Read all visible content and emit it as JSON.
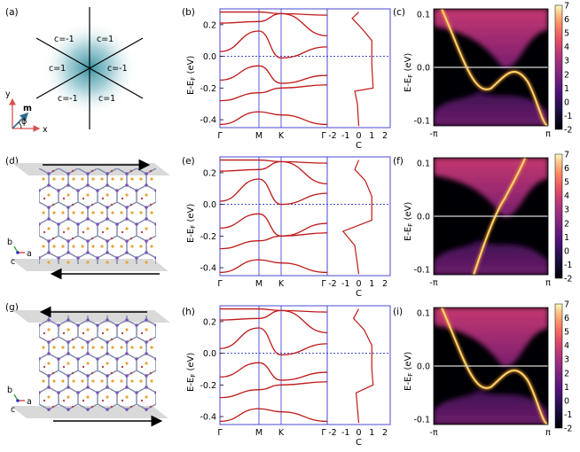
{
  "panel_labels": [
    "(a)",
    "(b)",
    "(c)",
    "(d)",
    "(e)",
    "(f)",
    "(g)",
    "(h)",
    "(i)"
  ],
  "panel_a": {
    "chern_labels": [
      "c=-1",
      "c=1",
      "c=1",
      "c=-1",
      "c=-1",
      "c=1"
    ],
    "axis_x": "x",
    "axis_y": "y",
    "vector_label": "m",
    "angle_label": "ϕ"
  },
  "band_panels": {
    "ylabel": "E-E",
    "ylabel_sub": "F",
    "ylabel_unit": " (eV)",
    "ytick_labels": [
      "0.2",
      "0.0",
      "-0.2",
      "-0.4"
    ],
    "kpath_labels": [
      "Γ",
      "M",
      "K",
      "Γ"
    ],
    "chern_xtick_labels": [
      "-2",
      "-1",
      "0",
      "1",
      "2"
    ],
    "chern_xlabel": "C"
  },
  "spectral_panels": {
    "ylabel": "E-E",
    "ylabel_sub": "F",
    "ylabel_unit": " (eV)",
    "ytick_labels": [
      "0.1",
      "0.0",
      "-0.1"
    ],
    "xtick_labels": [
      "-π",
      "π"
    ],
    "colorbar_ticks": [
      "7",
      "6",
      "5",
      "4",
      "3",
      "2",
      "1",
      "0",
      "-1",
      "-2"
    ]
  },
  "structure_panels": {
    "axis_b": "b",
    "axis_c": "c",
    "axis_a": "a"
  },
  "chart_data": [
    {
      "type": "line",
      "panel": "(b)",
      "xlabel": "",
      "ylabel": "E-E_F (eV)",
      "x": [
        "Γ",
        "M",
        "K",
        "Γ"
      ],
      "ylim": [
        -0.45,
        0.3
      ],
      "series_note": "band energies (eV) sampled at Γ, M, K, Γ",
      "bands": [
        [
          0.28,
          0.28,
          0.27,
          0.26
        ],
        [
          0.21,
          0.22,
          0.27,
          0.13
        ],
        [
          0.03,
          0.16,
          -0.01,
          0.06
        ],
        [
          -0.15,
          -0.06,
          -0.17,
          -0.12
        ],
        [
          -0.28,
          -0.23,
          -0.2,
          -0.18
        ],
        [
          -0.43,
          -0.35,
          -0.37,
          -0.43
        ]
      ]
    },
    {
      "type": "line",
      "panel": "(b)",
      "xlabel": "C",
      "x": "Chern number vs energy",
      "xlim": [
        -2,
        2
      ],
      "points": [
        [
          0,
          0.28
        ],
        [
          -0.5,
          0.24
        ],
        [
          0.3,
          0.17
        ],
        [
          1,
          0.1
        ],
        [
          1,
          -0.05
        ],
        [
          1.1,
          -0.2
        ],
        [
          -0.3,
          -0.22
        ],
        [
          -0.1,
          -0.3
        ],
        [
          0,
          -0.44
        ]
      ]
    },
    {
      "type": "heatmap",
      "panel": "(c)",
      "xlim": [
        "-π",
        "π"
      ],
      "ylim": [
        -0.1,
        0.1
      ],
      "colorbar_range": [
        -2,
        7
      ],
      "edge_state": "crossing Fermi level once, left-moving"
    },
    {
      "type": "line",
      "panel": "(e)",
      "ylabel": "E-E_F (eV)",
      "x": [
        "Γ",
        "M",
        "K",
        "Γ"
      ],
      "ylim": [
        -0.45,
        0.3
      ],
      "bands": [
        [
          0.28,
          0.28,
          0.27,
          0.26
        ],
        [
          0.21,
          0.22,
          0.27,
          0.13
        ],
        [
          0.02,
          0.16,
          -0.0,
          0.07
        ],
        [
          -0.15,
          -0.06,
          -0.2,
          -0.12
        ],
        [
          -0.28,
          -0.23,
          -0.2,
          -0.18
        ],
        [
          -0.43,
          -0.35,
          -0.37,
          -0.43
        ]
      ]
    },
    {
      "type": "line",
      "panel": "(e)",
      "xlabel": "C",
      "xlim": [
        -2,
        2
      ],
      "points": [
        [
          0,
          0.28
        ],
        [
          -0.3,
          0.22
        ],
        [
          0.5,
          0.15
        ],
        [
          1,
          0.05
        ],
        [
          1,
          -0.1
        ],
        [
          -1.2,
          -0.17
        ],
        [
          -0.3,
          -0.26
        ],
        [
          0,
          -0.44
        ]
      ]
    },
    {
      "type": "heatmap",
      "panel": "(f)",
      "xlim": [
        "-π",
        "π"
      ],
      "ylim": [
        -0.1,
        0.1
      ],
      "colorbar_range": [
        -2,
        7
      ],
      "edge_state": "crossing Fermi level once, right-moving"
    },
    {
      "type": "line",
      "panel": "(h)",
      "ylabel": "E-E_F (eV)",
      "x": [
        "Γ",
        "M",
        "K",
        "Γ"
      ],
      "ylim": [
        -0.45,
        0.3
      ],
      "bands": [
        [
          0.28,
          0.28,
          0.27,
          0.26
        ],
        [
          0.21,
          0.22,
          0.27,
          0.13
        ],
        [
          0.03,
          0.16,
          -0.01,
          0.06
        ],
        [
          -0.15,
          -0.06,
          -0.17,
          -0.12
        ],
        [
          -0.28,
          -0.23,
          -0.2,
          -0.18
        ],
        [
          -0.43,
          -0.35,
          -0.37,
          -0.43
        ]
      ]
    },
    {
      "type": "line",
      "panel": "(h)",
      "xlabel": "C",
      "xlim": [
        -2,
        2
      ],
      "points": [
        [
          0,
          0.28
        ],
        [
          -0.4,
          0.22
        ],
        [
          0.4,
          0.15
        ],
        [
          1,
          0.05
        ],
        [
          1,
          -0.1
        ],
        [
          1.1,
          -0.2
        ],
        [
          -0.2,
          -0.25
        ],
        [
          0,
          -0.44
        ]
      ]
    },
    {
      "type": "heatmap",
      "panel": "(i)",
      "xlim": [
        "-π",
        "π"
      ],
      "ylim": [
        -0.1,
        0.1
      ],
      "colorbar_range": [
        -2,
        7
      ],
      "edge_state": "crossing Fermi level once, left-moving"
    }
  ]
}
